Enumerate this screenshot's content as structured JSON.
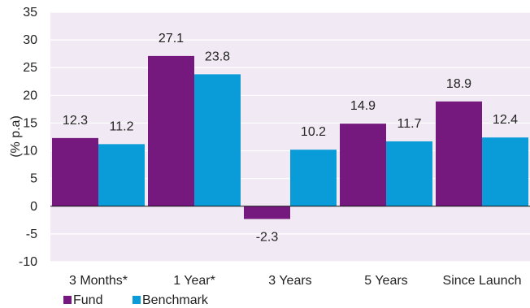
{
  "chart_data": {
    "type": "bar",
    "categories": [
      "3 Months*",
      "1 Year*",
      "3 Years",
      "5 Years",
      "Since Launch"
    ],
    "series": [
      {
        "name": "Fund",
        "values": [
          12.3,
          27.1,
          -2.3,
          14.9,
          18.9
        ]
      },
      {
        "name": "Benchmark",
        "values": [
          11.2,
          23.8,
          10.2,
          11.7,
          12.4
        ]
      }
    ],
    "value_labels": [
      [
        "12.3",
        "27.1",
        "-2.3",
        "14.9",
        "18.9"
      ],
      [
        "11.2",
        "23.8",
        "10.2",
        "11.7",
        "12.4"
      ]
    ],
    "ylabel": "(% p.a)",
    "ylim": [
      -10,
      35
    ],
    "yticks": [
      35,
      30,
      25,
      20,
      15,
      10,
      5,
      0,
      -5,
      -10
    ],
    "ytick_labels": [
      "35",
      "30",
      "25",
      "20",
      "15",
      "10",
      "5",
      "0",
      "-5",
      "-10"
    ],
    "legend_position": "bottom-left",
    "grid": true,
    "colors": {
      "Fund": "#76197f",
      "Benchmark": "#0a9bd9",
      "plot_background": "#f1e9f3",
      "gridline": "#ffffff",
      "zero_line": "#111111"
    }
  }
}
